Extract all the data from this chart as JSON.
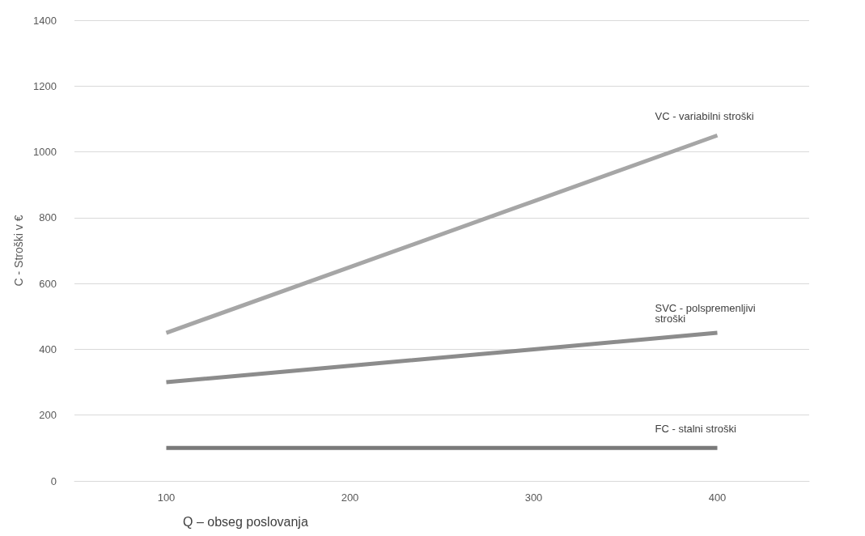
{
  "chart_data": {
    "type": "line",
    "xlabel": "Q – obseg poslovanja",
    "ylabel": "C - Stroški v €",
    "categories": [
      "100",
      "200",
      "300",
      "400"
    ],
    "series": [
      {
        "name": "VC - variabilni stroški",
        "color": "#a6a6a6",
        "values": [
          450,
          650,
          850,
          1050
        ]
      },
      {
        "name": "SVC - polspremenljivi stroški",
        "color": "#8c8c8c",
        "values": [
          300,
          350,
          400,
          450
        ]
      },
      {
        "name": "FC - stalni stroški",
        "color": "#7a7a7a",
        "values": [
          100,
          100,
          100,
          100
        ]
      }
    ],
    "ylim": [
      0,
      1400
    ],
    "yticks": [
      0,
      200,
      400,
      600,
      800,
      1000,
      1200,
      1400
    ],
    "grid": "y",
    "legend": false,
    "marker": "none",
    "line_style": "solid"
  }
}
